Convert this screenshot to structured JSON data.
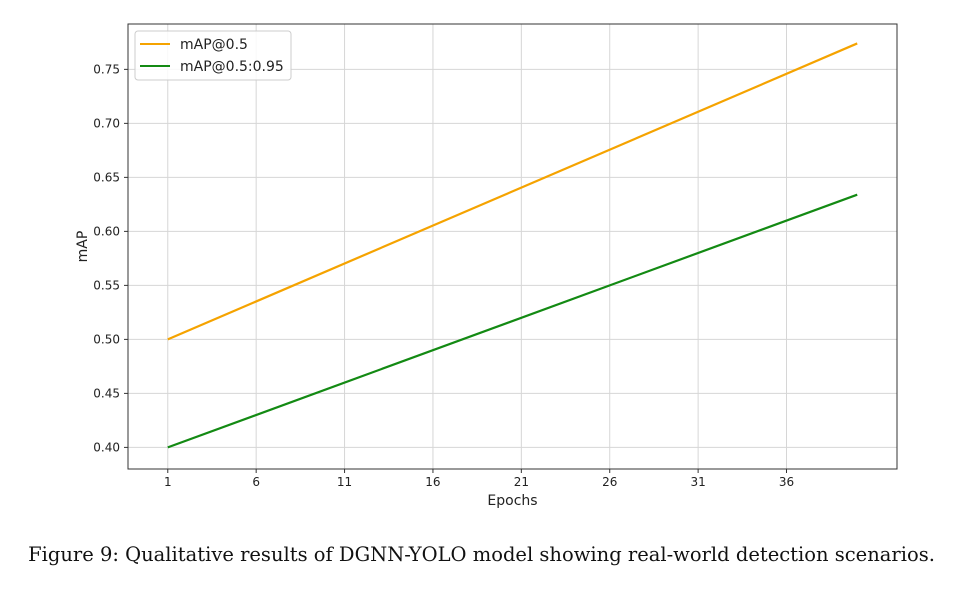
{
  "caption": "Figure 9: Qualitative results of DGNN-YOLO model showing real-world detection scenarios.",
  "colors": {
    "series_1": "#f5a300",
    "series_2": "#138a13",
    "grid": "#d6d6d6",
    "frame": "#333333"
  },
  "chart_data": {
    "type": "line",
    "title": "",
    "xlabel": "Epochs",
    "ylabel": "mAP",
    "xlim": [
      -1.25,
      42.25
    ],
    "ylim": [
      0.38,
      0.792
    ],
    "xticks": [
      1,
      6,
      11,
      16,
      21,
      26,
      31,
      36
    ],
    "yticks": [
      0.4,
      0.45,
      0.5,
      0.55,
      0.6,
      0.65,
      0.7,
      0.75
    ],
    "xtick_labels": [
      "1",
      "6",
      "11",
      "16",
      "21",
      "26",
      "31",
      "36"
    ],
    "ytick_labels": [
      "0.40",
      "0.45",
      "0.50",
      "0.55",
      "0.60",
      "0.65",
      "0.70",
      "0.75"
    ],
    "grid": true,
    "legend_position": "top-left",
    "series": [
      {
        "name": "mAP@0.5",
        "color": "#f5a300",
        "x": [
          1,
          40
        ],
        "y": [
          0.5,
          0.774
        ]
      },
      {
        "name": "mAP@0.5:0.95",
        "color": "#138a13",
        "x": [
          1,
          40
        ],
        "y": [
          0.4,
          0.634
        ]
      }
    ]
  }
}
